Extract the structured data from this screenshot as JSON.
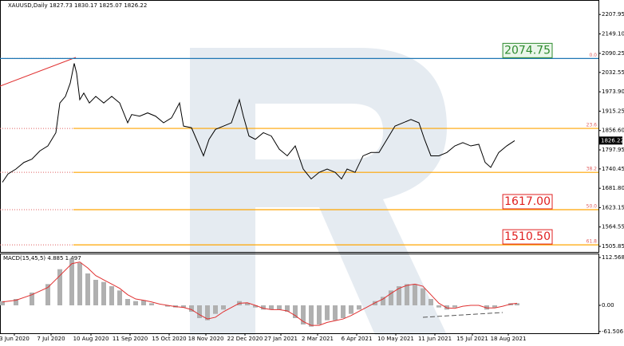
{
  "chart_data": [
    {
      "type": "line",
      "title": "XAUUSD,Daily  1827.73 1830.17 1825.07 1826.22",
      "xlim": [
        0,
        375
      ],
      "xticks": [
        {
          "value": 9,
          "label": "3 Jun 2020"
        },
        {
          "value": 32,
          "label": "7 Jul 2020"
        },
        {
          "value": 57,
          "label": "10 Aug 2020"
        },
        {
          "value": 81.5,
          "label": "11 Sep 2020"
        },
        {
          "value": 106,
          "label": "15 Oct 2020"
        },
        {
          "value": 129,
          "label": "18 Nov 2020"
        },
        {
          "value": 153.5,
          "label": "22 Dec 2020"
        },
        {
          "value": 176,
          "label": "27 Jan 2021"
        },
        {
          "value": 199,
          "label": "2 Mar 2021"
        },
        {
          "value": 223.5,
          "label": "6 Apr 2021"
        },
        {
          "value": 248,
          "label": "10 May 2021"
        },
        {
          "value": 272.5,
          "label": "11 Jun 2021"
        },
        {
          "value": 296,
          "label": "15 Jul 2021"
        },
        {
          "value": 318.5,
          "label": "18 Aug 2021"
        }
      ],
      "ylim": [
        1489,
        2247
      ],
      "yticks": [
        2207.95,
        {
          "value": 2149.1,
          "label": "2149.10"
        },
        2090.25,
        2032.55,
        {
          "value": 1973.9,
          "label": "1973.90"
        },
        1915.25,
        {
          "value": 1856.6,
          "label": "1856.60"
        },
        1797.95,
        1740.45,
        {
          "value": 1681.8,
          "label": "1681.80"
        },
        1623.15,
        1564.55,
        1505.85
      ],
      "series": [
        {
          "name": "XAUUSD",
          "color": "#000000",
          "x": [
            1.5,
            5,
            10,
            15,
            20,
            25,
            30,
            35,
            37.5,
            41,
            44,
            46.5,
            48,
            50,
            52.5,
            56,
            60,
            65,
            70,
            75,
            80,
            82.5,
            87.5,
            92.5,
            97.5,
            102.5,
            107.5,
            112.5,
            115,
            120,
            124,
            127.5,
            131,
            135,
            140,
            145,
            150,
            152.5,
            156,
            160,
            165,
            170,
            175,
            180,
            185,
            190,
            195,
            200,
            205,
            210,
            214,
            217.5,
            222.5,
            227.5,
            232.5,
            237.5,
            242.5,
            247.5,
            252.5,
            257.5,
            262.5,
            266,
            270,
            275,
            280,
            285,
            290,
            295,
            300,
            304,
            307.5,
            312.5,
            317.5,
            322.5
          ],
          "values": [
            1700,
            1725,
            1740,
            1760,
            1770,
            1795,
            1810,
            1850,
            1940,
            1960,
            2000,
            2060,
            2030,
            1950,
            1970,
            1940,
            1960,
            1940,
            1960,
            1940,
            1880,
            1905,
            1900,
            1910,
            1900,
            1880,
            1895,
            1940,
            1870,
            1865,
            1820,
            1780,
            1830,
            1860,
            1870,
            1880,
            1950,
            1900,
            1840,
            1830,
            1850,
            1840,
            1800,
            1780,
            1810,
            1740,
            1710,
            1730,
            1740,
            1730,
            1710,
            1740,
            1730,
            1780,
            1790,
            1790,
            1830,
            1870,
            1880,
            1890,
            1880,
            1830,
            1780,
            1780,
            1790,
            1810,
            1820,
            1810,
            1815,
            1760,
            1745,
            1790,
            1810,
            1826
          ]
        }
      ],
      "levels": [
        {
          "ratio": "0.0",
          "price": {
            "value": 2074.75,
            "label": "2074.75"
          },
          "color": "#1f77b4"
        },
        {
          "ratio": "23.6",
          "price": 1863,
          "color": "#ffa500"
        },
        {
          "ratio": "38.2",
          "price": 1730,
          "color": "#ffa500"
        },
        {
          "ratio": "50.0",
          "price": {
            "value": 1617,
            "label": "1617.00"
          },
          "color": "#ffa500"
        },
        {
          "ratio": "61.8",
          "price": {
            "value": 1510.5,
            "label": "1510.50"
          },
          "color": "#ffa500"
        }
      ],
      "last_price": 1826.22
    },
    {
      "type": "macd",
      "title": "MACD(15,45,5) 4.885 1.497",
      "xlim": [
        0,
        375
      ],
      "ylim": [
        -65.6,
        121.9
      ],
      "yticks": [
        112.568,
        {
          "value": 0,
          "label": "0.00"
        },
        -61.506
      ],
      "x": [
        1.5,
        10,
        20,
        30,
        37.5,
        45,
        50,
        55,
        60,
        65,
        70,
        75,
        80,
        85,
        90,
        95,
        100,
        105,
        110,
        115,
        120,
        125,
        130,
        135,
        140,
        145,
        150,
        155,
        160,
        165,
        170,
        175,
        180,
        185,
        190,
        195,
        200,
        205,
        210,
        215,
        220,
        225,
        230,
        235,
        240,
        245,
        250,
        255,
        260,
        265,
        270,
        275,
        280,
        285,
        290,
        295,
        300,
        305,
        310,
        315,
        320,
        324
      ],
      "series": [
        {
          "name": "MACD",
          "color": "#b0b0b0",
          "values": [
            10,
            15,
            30,
            50,
            85,
            110,
            100,
            75,
            60,
            55,
            45,
            35,
            15,
            10,
            12,
            5,
            0,
            -3,
            -5,
            -5,
            -15,
            -30,
            -35,
            -20,
            -10,
            0,
            10,
            5,
            -5,
            -10,
            -10,
            -10,
            -15,
            -30,
            -45,
            -50,
            -45,
            -35,
            -35,
            -30,
            -20,
            -10,
            0,
            10,
            20,
            35,
            45,
            50,
            50,
            40,
            15,
            -5,
            -10,
            -5,
            0,
            0,
            0,
            -10,
            -5,
            0,
            5,
            5
          ]
        },
        {
          "name": "Signal",
          "color": "#e03030",
          "values": [
            8,
            12,
            25,
            42,
            70,
            98,
            102,
            88,
            70,
            60,
            50,
            40,
            25,
            15,
            12,
            8,
            3,
            0,
            -3,
            -5,
            -10,
            -22,
            -32,
            -28,
            -15,
            -5,
            5,
            6,
            0,
            -7,
            -10,
            -10,
            -13,
            -24,
            -38,
            -47,
            -47,
            -40,
            -36,
            -32,
            -24,
            -14,
            -4,
            6,
            15,
            28,
            40,
            47,
            50,
            45,
            25,
            5,
            -6,
            -7,
            -2,
            0,
            0,
            -6,
            -6,
            -2,
            3,
            5
          ]
        }
      ]
    }
  ]
}
